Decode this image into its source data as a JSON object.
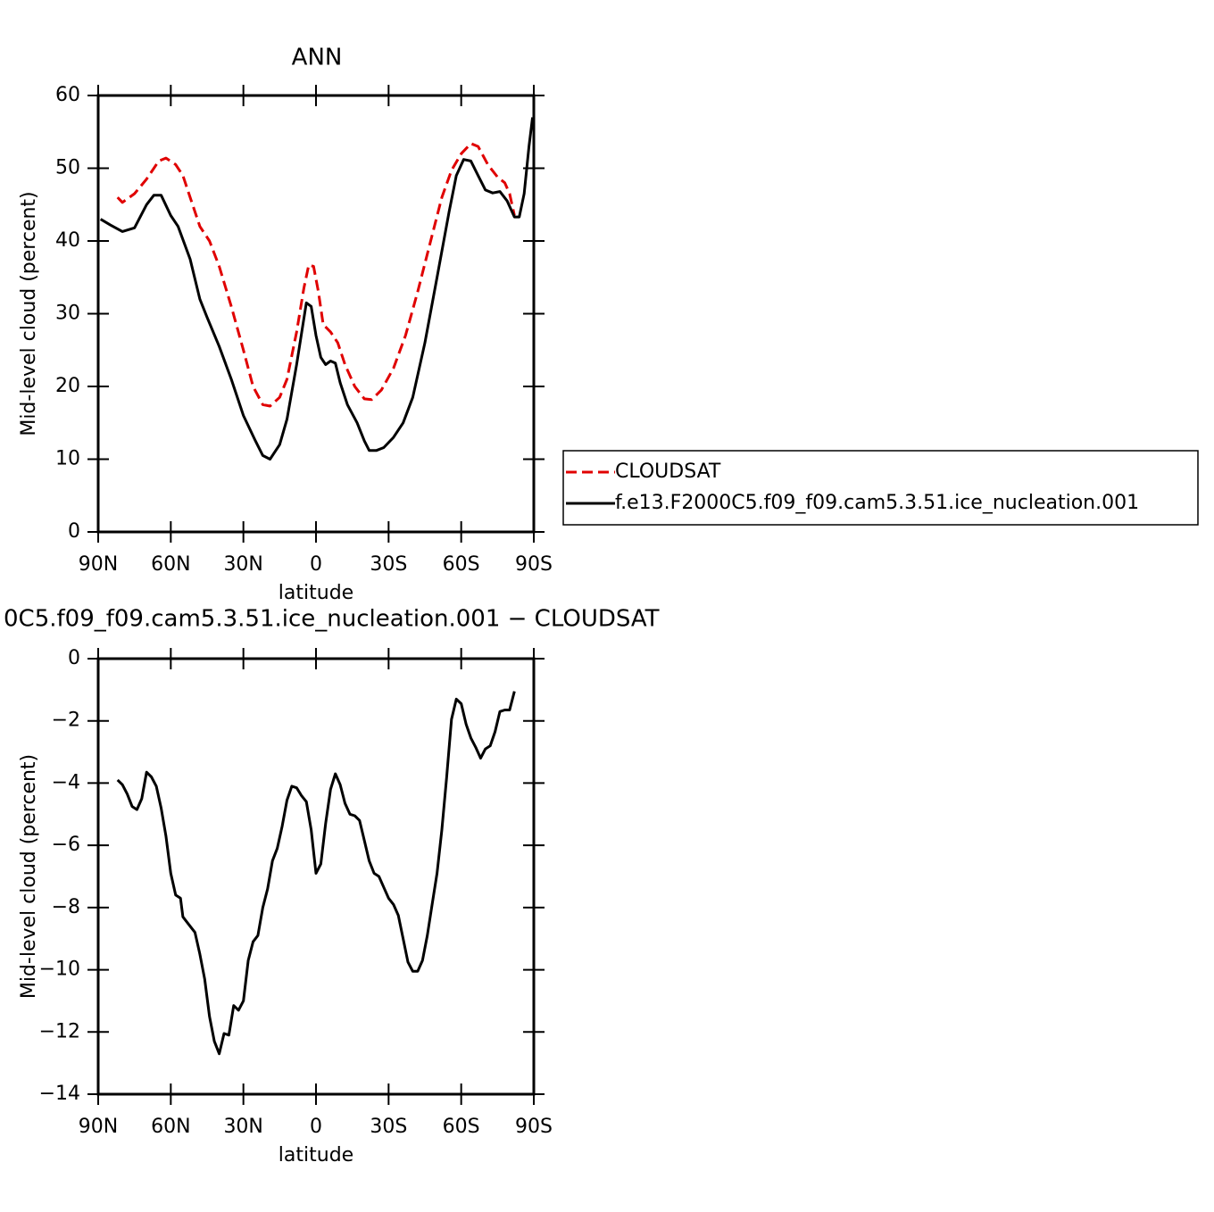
{
  "chart_data": [
    {
      "type": "line",
      "title": "ANN",
      "xlabel": "latitude",
      "ylabel": "Mid-level cloud (percent)",
      "xlim": [
        90,
        -90
      ],
      "xticks": [
        {
          "value": 90,
          "label": "90N"
        },
        {
          "value": 60,
          "label": "60N"
        },
        {
          "value": 30,
          "label": "30N"
        },
        0,
        {
          "value": -30,
          "label": "30S"
        },
        {
          "value": -60,
          "label": "60S"
        },
        {
          "value": -90,
          "label": "90S"
        }
      ],
      "ylim": [
        0,
        60
      ],
      "yticks": [
        0,
        10,
        20,
        30,
        40,
        50,
        60
      ],
      "legend": "right",
      "series": [
        {
          "name": "CLOUDSAT",
          "color": "#e00000",
          "dash": true,
          "x": [
            82,
            80,
            75,
            70,
            65,
            62,
            58,
            55,
            52,
            48,
            44,
            40,
            35,
            30,
            26,
            22,
            19,
            15,
            12,
            8,
            5,
            3,
            1,
            -1,
            -3,
            -6,
            -9,
            -12,
            -16,
            -20,
            -23,
            -27,
            -32,
            -37,
            -42,
            -47,
            -52,
            -56,
            -60,
            -64,
            -67,
            -71,
            -75,
            -78,
            -80,
            -82
          ],
          "values": [
            46,
            45.3,
            46.5,
            48.5,
            51,
            51.4,
            50.5,
            49,
            46,
            42,
            40,
            36.5,
            31,
            25,
            20,
            17.5,
            17.3,
            18.5,
            21,
            27.5,
            33.5,
            36.7,
            36.5,
            33,
            28.5,
            27.5,
            26,
            23,
            20,
            18.3,
            18.2,
            19.5,
            22.5,
            27,
            33,
            39.5,
            46,
            49.7,
            52,
            53.4,
            53,
            50.5,
            48.8,
            48,
            46.5,
            43.5
          ]
        },
        {
          "name": "f.e13.F2000C5.f09_f09.cam5.3.51.ice_nucleation.001",
          "color": "#000000",
          "dash": false,
          "x": [
            89,
            85,
            80,
            75,
            70,
            67,
            64,
            60,
            57,
            52,
            48,
            45,
            40,
            35,
            30,
            25,
            22,
            19,
            15,
            12,
            8,
            4,
            2,
            0,
            -2,
            -4,
            -6,
            -8,
            -10,
            -13,
            -17,
            -20,
            -22,
            -25,
            -28,
            -32,
            -36,
            -40,
            -45,
            -50,
            -55,
            -58,
            -61,
            -64,
            -67,
            -70,
            -73,
            -76,
            -79,
            -82,
            -84,
            -86,
            -88,
            -89.5
          ],
          "values": [
            43,
            42.2,
            41.3,
            41.8,
            45,
            46.3,
            46.3,
            43.5,
            42,
            37.5,
            32,
            29.5,
            25.5,
            21,
            16,
            12.5,
            10.5,
            10,
            12,
            15.5,
            23,
            31.5,
            31,
            27,
            24,
            23,
            23.5,
            23.2,
            20.5,
            17.5,
            15,
            12.5,
            11.2,
            11.2,
            11.6,
            13,
            15,
            18.5,
            26,
            35,
            44,
            49,
            51.2,
            51,
            49,
            47,
            46.6,
            46.8,
            45.5,
            43.3,
            43.3,
            46.5,
            53,
            57
          ]
        }
      ]
    },
    {
      "type": "line",
      "title": "0C5.f09_f09.cam5.3.51.ice_nucleation.001 − CLOUDSAT",
      "xlabel": "latitude",
      "ylabel": "Mid-level cloud (percent)",
      "xlim": [
        90,
        -90
      ],
      "xticks": [
        {
          "value": 90,
          "label": "90N"
        },
        {
          "value": 60,
          "label": "60N"
        },
        {
          "value": 30,
          "label": "30N"
        },
        0,
        {
          "value": -30,
          "label": "30S"
        },
        {
          "value": -60,
          "label": "60S"
        },
        {
          "value": -90,
          "label": "90S"
        }
      ],
      "ylim": [
        -14,
        0
      ],
      "yticks": [
        {
          "value": -14,
          "label": "−14"
        },
        {
          "value": -12,
          "label": "−12"
        },
        {
          "value": -10,
          "label": "−10"
        },
        {
          "value": -8,
          "label": "−8"
        },
        {
          "value": -6,
          "label": "−6"
        },
        {
          "value": -4,
          "label": "−4"
        },
        {
          "value": -2,
          "label": "−2"
        },
        0
      ],
      "series": [
        {
          "color": "#000000",
          "dash": false,
          "x": [
            82,
            80,
            78,
            76,
            74,
            72,
            70,
            68,
            66,
            64,
            62,
            60,
            58,
            56,
            55,
            52,
            50,
            48,
            46,
            44,
            42,
            40,
            38,
            36,
            34,
            32,
            30,
            28,
            26,
            24,
            22,
            20,
            18,
            16,
            14,
            12,
            10,
            8,
            6,
            4,
            2,
            0,
            -2,
            -4,
            -6,
            -8,
            -10,
            -12,
            -14,
            -16,
            -18,
            -20,
            -22,
            -24,
            -26,
            -28,
            -30,
            -32,
            -34,
            -36,
            -38,
            -40,
            -42,
            -44,
            -46,
            -48,
            -50,
            -52,
            -54,
            -56,
            -58,
            -60,
            -62,
            -64,
            -66,
            -68,
            -70,
            -72,
            -74,
            -76,
            -78,
            -80,
            -82
          ],
          "values": [
            -3.9,
            -4.05,
            -4.35,
            -4.75,
            -4.85,
            -4.5,
            -3.65,
            -3.8,
            -4.1,
            -4.8,
            -5.7,
            -6.9,
            -7.6,
            -7.7,
            -8.3,
            -8.6,
            -8.8,
            -9.5,
            -10.3,
            -11.5,
            -12.3,
            -12.7,
            -12.05,
            -12.1,
            -11.15,
            -11.3,
            -11,
            -9.7,
            -9.1,
            -8.9,
            -8,
            -7.4,
            -6.5,
            -6.1,
            -5.4,
            -4.55,
            -4.1,
            -4.15,
            -4.4,
            -4.6,
            -5.5,
            -6.9,
            -6.6,
            -5.3,
            -4.2,
            -3.7,
            -4.05,
            -4.65,
            -5,
            -5.05,
            -5.2,
            -5.85,
            -6.5,
            -6.9,
            -7,
            -7.35,
            -7.7,
            -7.9,
            -8.25,
            -9,
            -9.75,
            -10.05,
            -10.05,
            -9.7,
            -8.9,
            -7.9,
            -6.9,
            -5.5,
            -3.8,
            -1.95,
            -1.3,
            -1.45,
            -2.1,
            -2.55,
            -2.85,
            -3.2,
            -2.9,
            -2.8,
            -2.35,
            -1.7,
            -1.65,
            -1.65,
            -1.05
          ]
        }
      ]
    }
  ]
}
